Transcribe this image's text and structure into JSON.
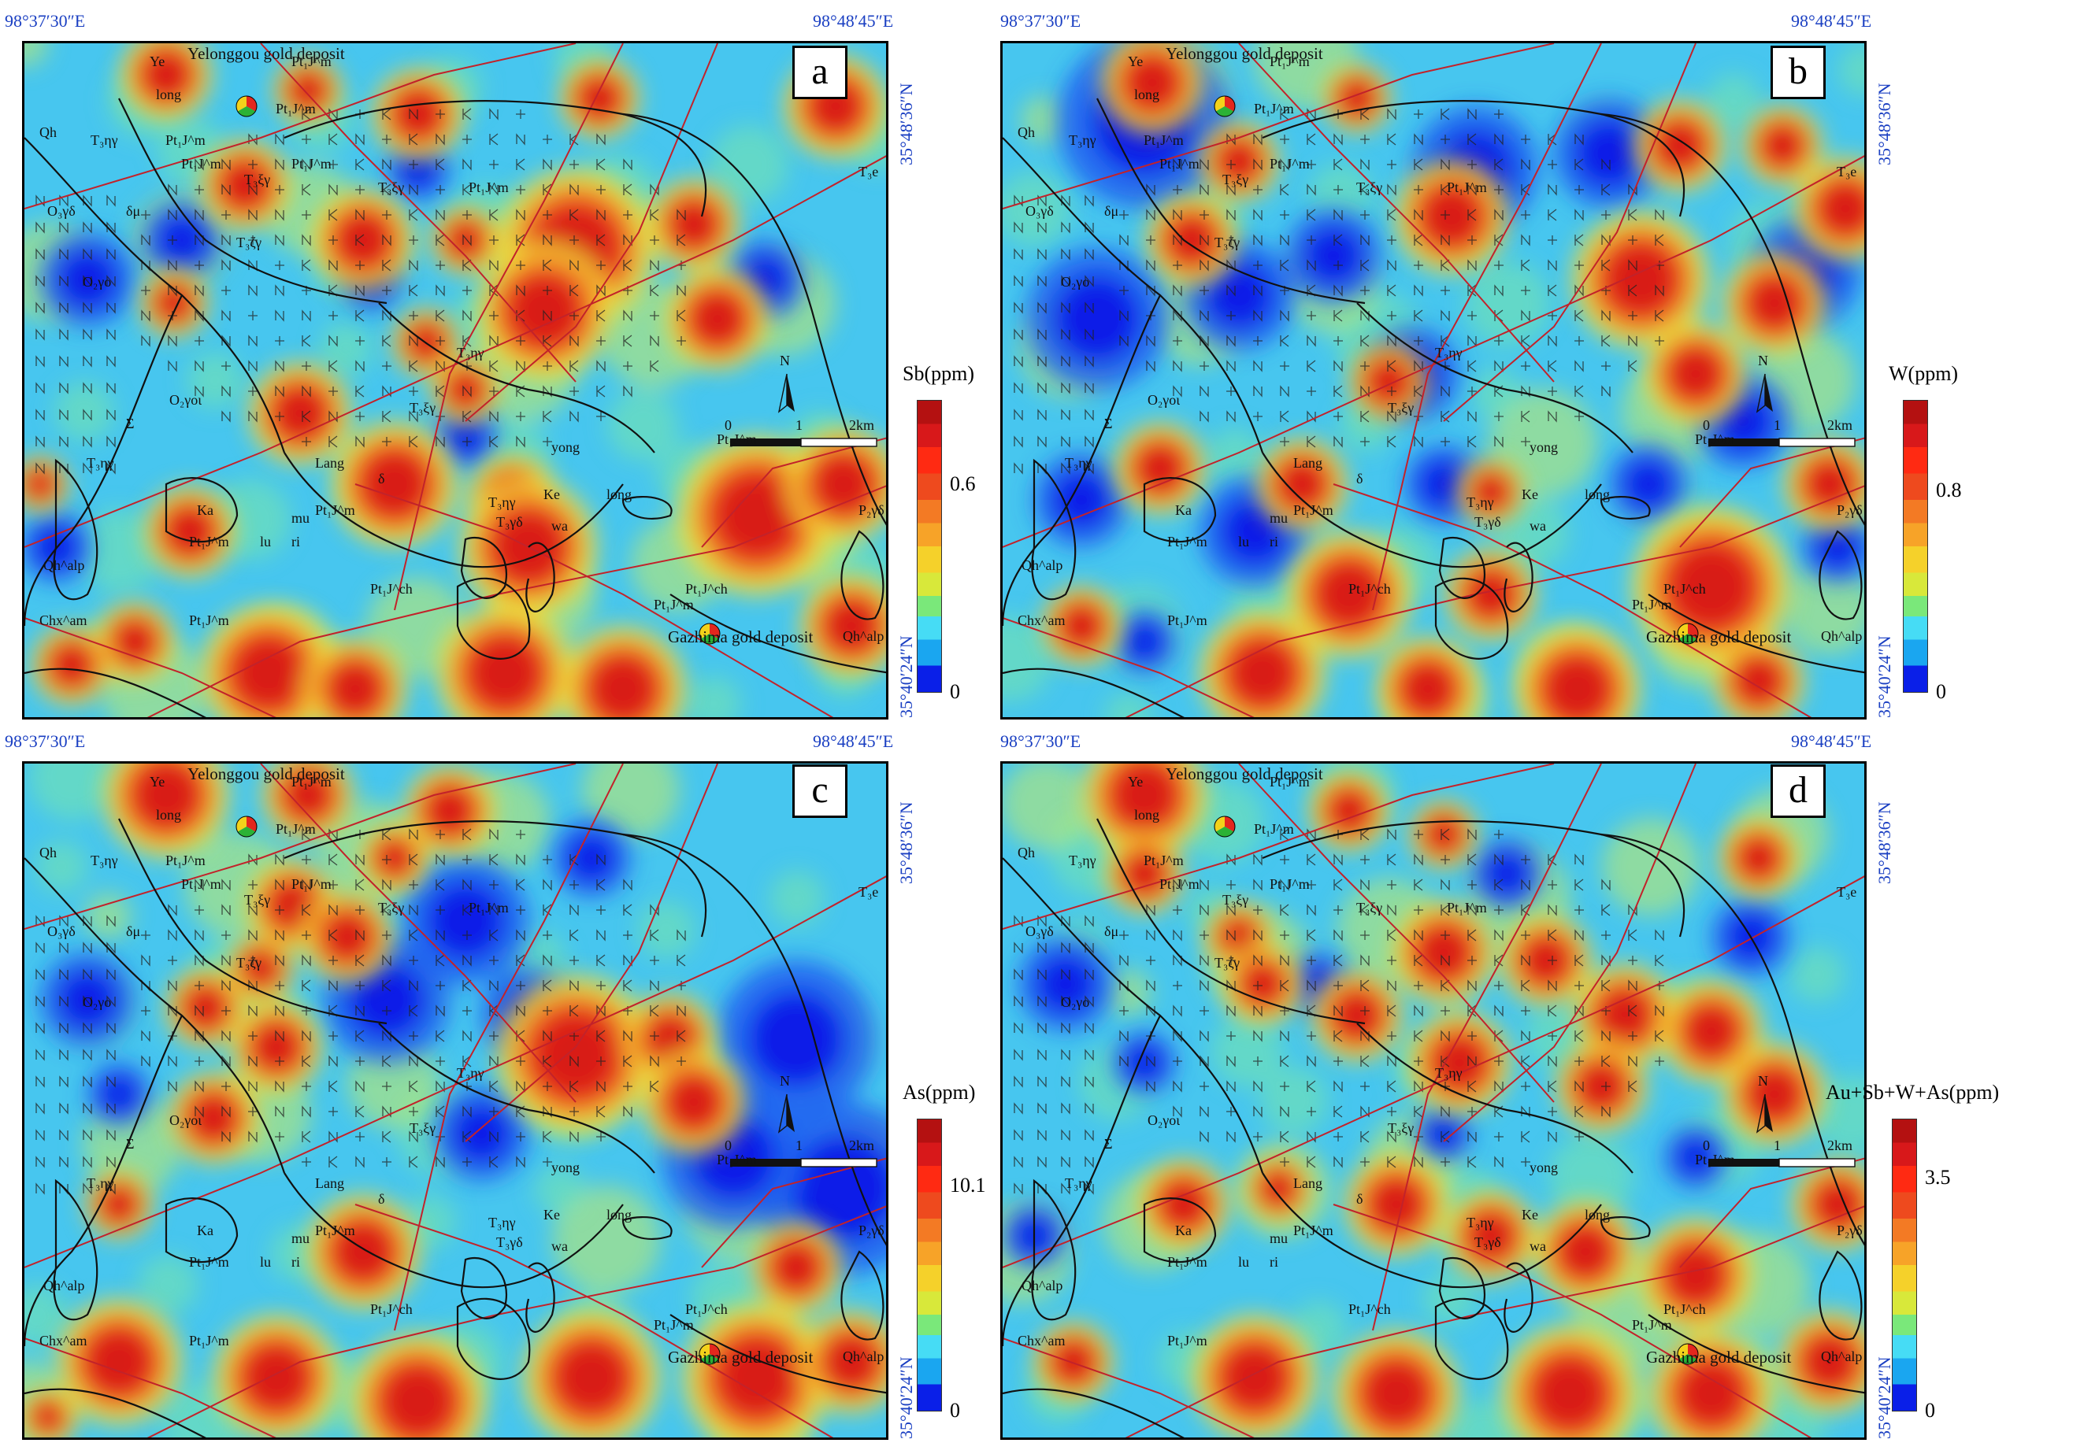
{
  "coords": {
    "lon_left": "98°37′30″E",
    "lon_right": "98°48′45″E",
    "lat_top": "35°48′36″N",
    "lat_bottom": "35°40′24″N"
  },
  "map_labels": {
    "yelonggou": "Yelonggou gold deposit",
    "gazhima": "Gazhima gold deposit",
    "units": [
      "Ye",
      "long",
      "Qh",
      "T₃ηγ",
      "Pt₁J^m",
      "Pt₁J^m",
      "Pt₁J^m",
      "T₃ξγ",
      "T₃ξγ",
      "T₃ζγ",
      "O₂γo",
      "δμ",
      "O₃γδ",
      "Pt₁J^m",
      "Pt₁J^m",
      "T₃e",
      "Pt₁J^m",
      "T₃ηγ",
      "T₃ξγ",
      "O₂γoι",
      "Σ",
      "T₃ηγ",
      "Lang",
      "δ",
      "Ke",
      "yong",
      "Pt₁J^m",
      "long",
      "wa",
      "Ka",
      "Pt₁J^m",
      "lu",
      "mu",
      "ri",
      "T₃ηγ",
      "Pt₁J^m",
      "P₂γδ",
      "Pt₁J^ch",
      "Pt₁J^ch",
      "Pt₁J^m",
      "Chx^am",
      "Qh^alp",
      "Qh^alp",
      "Pt₁J^m",
      "T₃γδ"
    ],
    "scale": {
      "zero": "0",
      "one": "1",
      "two": "2km"
    },
    "north": "N"
  },
  "panels": [
    {
      "letter": "a",
      "legend_title": "Sb(ppm)",
      "tick_high": "0.6",
      "tick_low": "0",
      "high_frac": 0.7,
      "colors": {
        "low": "#0a1fe8",
        "high": "#d8181a"
      }
    },
    {
      "letter": "b",
      "legend_title": "W(ppm)",
      "tick_high": "0.8",
      "tick_low": "0",
      "high_frac": 0.7,
      "colors": {
        "low": "#0a1fe8",
        "high": "#d8181a"
      }
    },
    {
      "letter": "c",
      "legend_title": "As(ppm)",
      "tick_high": "10.1",
      "tick_low": "0",
      "high_frac": 0.7,
      "colors": {
        "low": "#0a1fe8",
        "high": "#d8181a"
      }
    },
    {
      "letter": "d",
      "legend_title": "Au+Sb+W+As(ppm)",
      "tick_high": "3.5",
      "tick_low": "0",
      "high_frac": 0.7,
      "colors": {
        "low": "#0a1fe8",
        "high": "#d8181a"
      }
    }
  ]
}
